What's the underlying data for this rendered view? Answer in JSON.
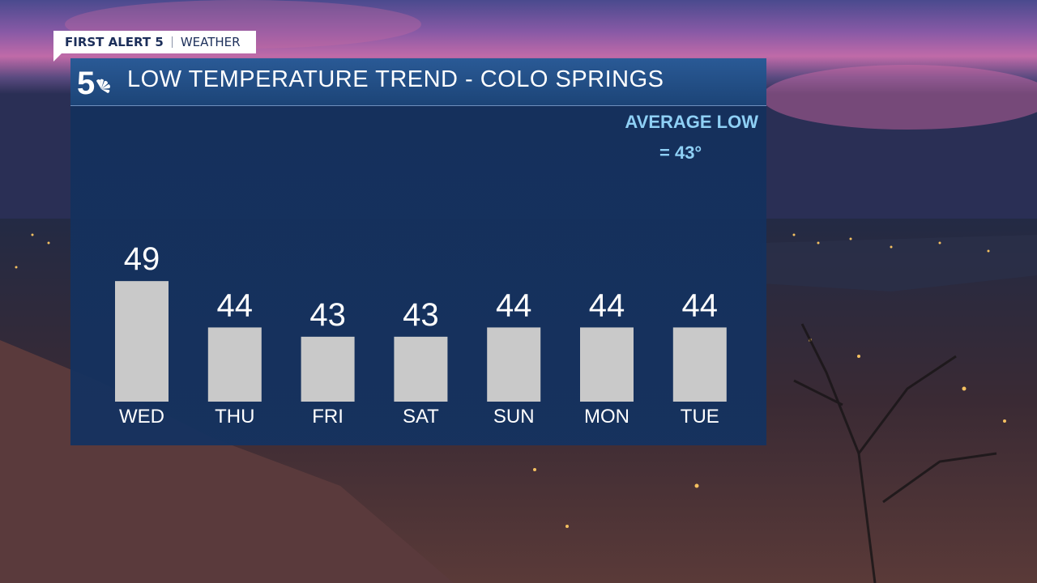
{
  "tag": {
    "brand": "FIRST ALERT 5",
    "section": "WEATHER"
  },
  "header": {
    "title": "LOW TEMPERATURE TREND - COLO SPRINGS",
    "logo_icon": "nbc-5-peacock-logo"
  },
  "average": {
    "label": "AVERAGE LOW",
    "value": "= 43°"
  },
  "colors": {
    "bar": "#c9c9c9",
    "panel": "#173a6b",
    "header": "#23508a",
    "accent_text": "#8fd0f5"
  },
  "chart_data": {
    "type": "bar",
    "title": "LOW TEMPERATURE TREND - COLO SPRINGS",
    "categories": [
      "WED",
      "THU",
      "FRI",
      "SAT",
      "SUN",
      "MON",
      "TUE"
    ],
    "values": [
      49,
      44,
      43,
      43,
      44,
      44,
      44
    ],
    "xlabel": "",
    "ylabel": "",
    "grid": false,
    "data_labels": true
  }
}
